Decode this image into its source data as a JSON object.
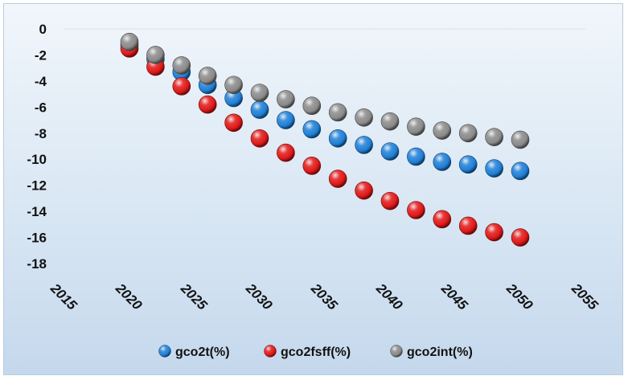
{
  "chart_data": {
    "type": "scatter",
    "title": "",
    "xlabel": "",
    "ylabel": "",
    "xlim": [
      2015,
      2055
    ],
    "ylim": [
      -18,
      0
    ],
    "x_ticks": [
      "2015",
      "2020",
      "2025",
      "2030",
      "2035",
      "2040",
      "2045",
      "2050",
      "2055"
    ],
    "y_ticks": [
      "0",
      "-2",
      "-4",
      "-6",
      "-8",
      "-10",
      "-12",
      "-14",
      "-16",
      "-18"
    ],
    "grid": false,
    "legend_position": "bottom",
    "x": [
      2020,
      2022,
      2024,
      2026,
      2028,
      2030,
      2032,
      2034,
      2036,
      2038,
      2040,
      2042,
      2044,
      2046,
      2048,
      2050
    ],
    "series": [
      {
        "name": "gco2t(%)",
        "color": "#1f7fd6",
        "values": [
          -1.2,
          -2.3,
          -3.3,
          -4.3,
          -5.3,
          -6.2,
          -7.0,
          -7.7,
          -8.4,
          -8.9,
          -9.4,
          -9.8,
          -10.2,
          -10.4,
          -10.7,
          -10.9
        ]
      },
      {
        "name": "gco2fsff(%)",
        "color": "#e01818",
        "values": [
          -1.5,
          -2.9,
          -4.4,
          -5.8,
          -7.2,
          -8.4,
          -9.5,
          -10.5,
          -11.5,
          -12.4,
          -13.2,
          -13.9,
          -14.6,
          -15.1,
          -15.6,
          -16.0
        ]
      },
      {
        "name": "gco2int(%)",
        "color": "#8a8a8a",
        "values": [
          -1.0,
          -2.0,
          -2.8,
          -3.6,
          -4.3,
          -4.9,
          -5.4,
          -5.9,
          -6.4,
          -6.8,
          -7.1,
          -7.5,
          -7.8,
          -8.0,
          -8.3,
          -8.5
        ]
      }
    ]
  }
}
